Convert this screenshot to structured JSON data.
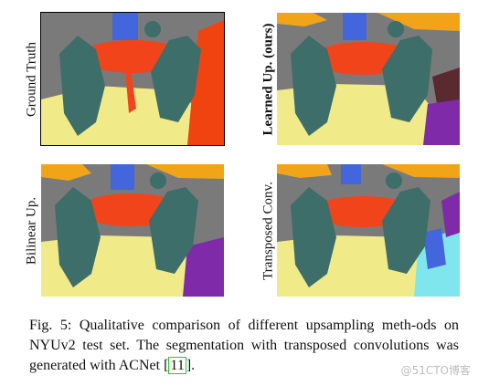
{
  "figure": {
    "panels": [
      {
        "id": "ground-truth",
        "label": "Ground Truth",
        "bold": false
      },
      {
        "id": "learned-up",
        "label": "Learned Up. (ours)",
        "bold": true
      },
      {
        "id": "bilinear-up",
        "label": "Bilinear Up.",
        "bold": false
      },
      {
        "id": "transposed-conv",
        "label": "Transposed Conv.",
        "bold": false
      }
    ],
    "caption": {
      "prefix": "Fig. 5: Qualitative comparison of different upsampling meth-ods on NYUv2 test set. The segmentation with transposed convolutions was generated with ACNet ",
      "open_bracket": "[",
      "citation": "11",
      "close_bracket": "]",
      "suffix": "."
    },
    "watermark": "@51CTO博客",
    "colors": {
      "wall": "#7a7a7a",
      "floor": "#f1ea88",
      "table": "#f2441b",
      "chair": "#3d6e6a",
      "blue_object": "#4466dd",
      "purple_object": "#7f2aa8",
      "cabinet": "#f0430f",
      "orange_top": "#f1a418",
      "dark_red": "#5a2a30"
    }
  }
}
